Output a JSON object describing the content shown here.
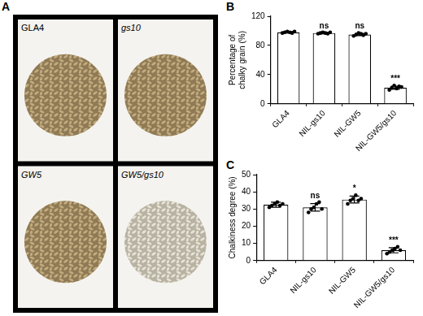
{
  "panel_a": {
    "panel": "A",
    "labels": [
      "GLA4",
      "gs10",
      "GW5",
      "GW5/gs10"
    ]
  },
  "chart_data": [
    {
      "panel": "B",
      "type": "bar",
      "y_label": "Percentage of chalky grain (%)",
      "categories": [
        "GLA4",
        "NIL-gs10",
        "NIL-GW5",
        "NIL-GW5/gs10"
      ],
      "values": [
        98,
        97,
        95,
        22
      ],
      "errors": [
        1,
        1,
        1.5,
        2
      ],
      "points": [
        [
          97,
          98,
          99,
          98,
          97,
          99
        ],
        [
          96,
          97,
          98,
          97,
          96,
          98
        ],
        [
          93,
          95,
          97,
          96,
          94,
          96
        ],
        [
          19,
          22,
          25,
          21,
          24,
          23
        ]
      ],
      "significance": [
        null,
        "ns",
        "ns",
        "***"
      ],
      "color": "#ffffff",
      "ylim": [
        0,
        120
      ],
      "yticks": [
        0,
        40,
        80,
        120
      ],
      "grid": false
    },
    {
      "panel": "C",
      "type": "bar",
      "y_label": "Chalkiness degree (%)",
      "categories": [
        "GLA4",
        "NIL-gs10",
        "NIL-GW5",
        "NIL-GW5/gs10"
      ],
      "values": [
        32.5,
        31,
        35.5,
        6
      ],
      "errors": [
        1.5,
        2.2,
        2,
        1.5
      ],
      "points": [
        [
          31,
          32,
          33,
          34,
          32,
          33
        ],
        [
          28,
          30,
          31,
          33,
          34,
          30
        ],
        [
          33,
          35,
          36,
          38,
          35,
          36
        ],
        [
          4,
          5,
          6,
          7,
          8,
          6
        ]
      ],
      "significance": [
        null,
        "ns",
        "*",
        "***"
      ],
      "color": "#ffffff",
      "ylim": [
        0,
        50
      ],
      "yticks": [
        0,
        10,
        20,
        30,
        40,
        50
      ],
      "grid": false
    }
  ]
}
